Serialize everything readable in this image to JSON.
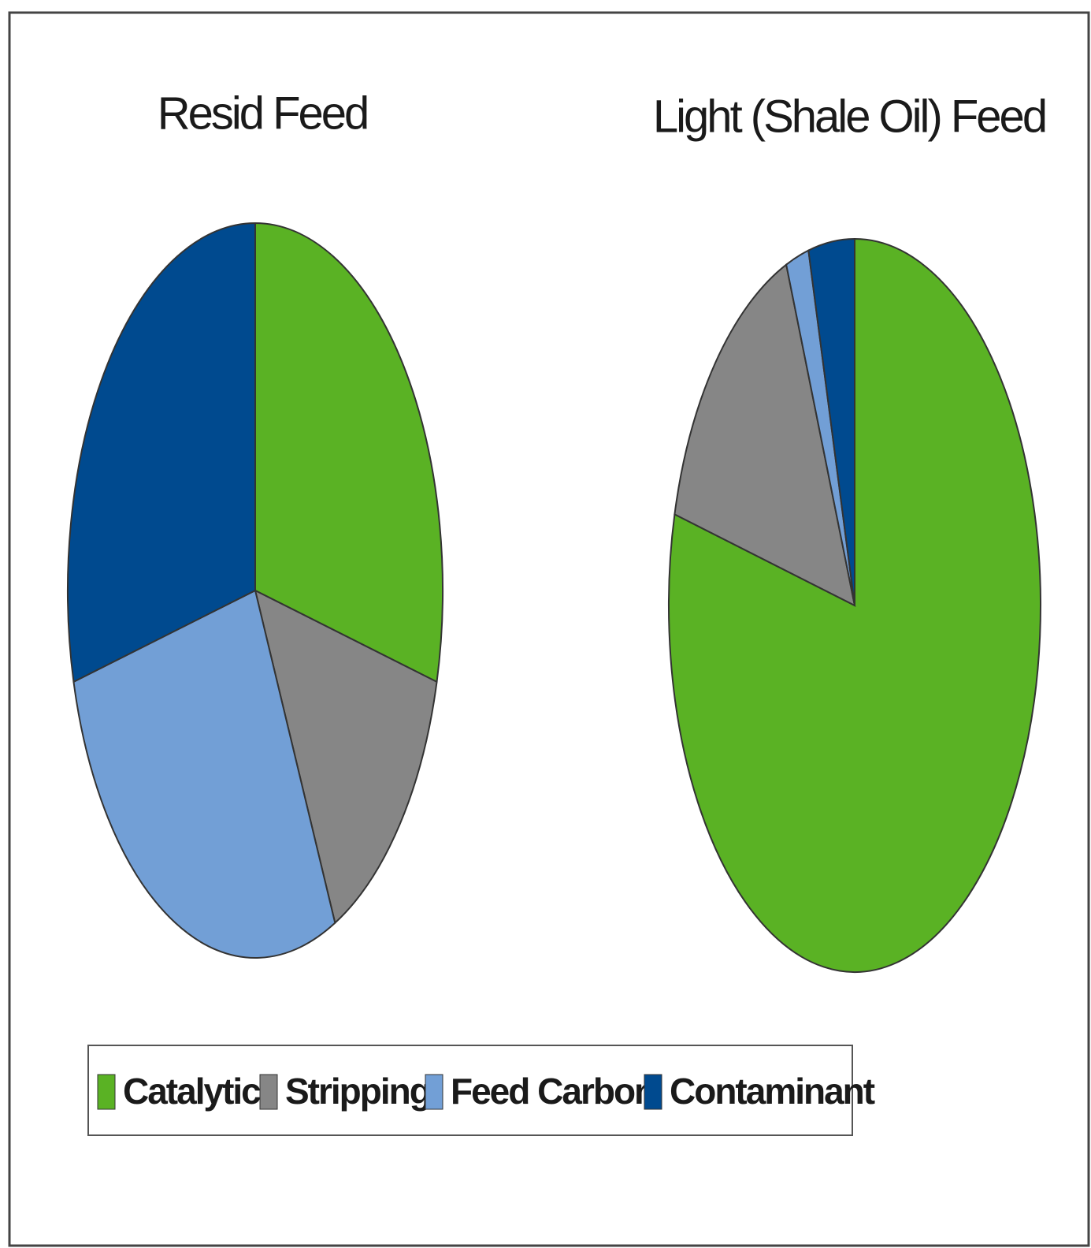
{
  "chart_data": [
    {
      "type": "pie",
      "title": "Resid Feed",
      "categories": [
        "Catalytic",
        "Stripping",
        "Feed Carbon",
        "Contaminant"
      ],
      "values": [
        29,
        14,
        28,
        29
      ],
      "colors": [
        "#5ab224",
        "#868686",
        "#729fd6",
        "#004a8f"
      ]
    },
    {
      "type": "pie",
      "title": "Light (Shale Oil) Feed",
      "categories": [
        "Catalytic",
        "Stripping",
        "Feed Carbon",
        "Contaminant"
      ],
      "values": [
        79,
        15,
        2,
        4
      ],
      "colors": [
        "#5ab224",
        "#868686",
        "#729fd6",
        "#004a8f"
      ]
    }
  ]
}
